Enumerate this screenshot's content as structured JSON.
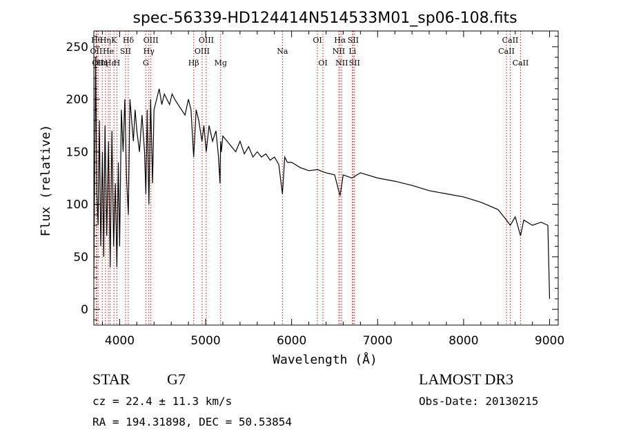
{
  "chart_data": {
    "type": "line",
    "title": "spec-56339-HD124414N514533M01_sp06-108.fits",
    "xlabel": "Wavelength (Å)",
    "ylabel": "Flux (relative)",
    "xlim": [
      3700,
      9100
    ],
    "ylim": [
      -15,
      265
    ],
    "xticks": [
      4000,
      5000,
      6000,
      7000,
      8000,
      9000
    ],
    "yticks": [
      0,
      50,
      100,
      150,
      200,
      250
    ],
    "series": [
      {
        "name": "spectrum",
        "x": [
          3700,
          3720,
          3735,
          3750,
          3765,
          3780,
          3800,
          3815,
          3830,
          3850,
          3870,
          3890,
          3910,
          3930,
          3950,
          3968,
          3985,
          4000,
          4020,
          4040,
          4060,
          4080,
          4101,
          4120,
          4140,
          4160,
          4180,
          4200,
          4230,
          4260,
          4290,
          4305,
          4320,
          4340,
          4360,
          4383,
          4400,
          4430,
          4460,
          4490,
          4520,
          4550,
          4580,
          4610,
          4640,
          4680,
          4720,
          4760,
          4800,
          4830,
          4861,
          4890,
          4920,
          4957,
          4980,
          5007,
          5040,
          5080,
          5120,
          5150,
          5167,
          5175,
          5183,
          5200,
          5250,
          5300,
          5350,
          5400,
          5450,
          5500,
          5550,
          5600,
          5650,
          5700,
          5750,
          5800,
          5850,
          5893,
          5920,
          5950,
          6000,
          6100,
          6200,
          6300,
          6400,
          6500,
          6563,
          6600,
          6700,
          6800,
          7000,
          7200,
          7400,
          7600,
          7800,
          8000,
          8200,
          8400,
          8498,
          8542,
          8600,
          8662,
          8700,
          8800,
          8900,
          8980,
          9000
        ],
        "values": [
          30,
          240,
          110,
          80,
          180,
          60,
          150,
          50,
          175,
          70,
          160,
          40,
          170,
          60,
          120,
          40,
          140,
          60,
          190,
          150,
          200,
          125,
          90,
          200,
          180,
          160,
          190,
          170,
          150,
          185,
          150,
          110,
          190,
          100,
          200,
          120,
          190,
          200,
          210,
          195,
          205,
          200,
          195,
          205,
          200,
          195,
          190,
          185,
          200,
          190,
          145,
          190,
          180,
          160,
          175,
          150,
          175,
          160,
          170,
          145,
          120,
          160,
          150,
          165,
          160,
          155,
          150,
          160,
          148,
          155,
          145,
          150,
          145,
          148,
          142,
          145,
          138,
          110,
          145,
          140,
          140,
          135,
          132,
          133,
          130,
          128,
          108,
          128,
          125,
          130,
          125,
          122,
          118,
          113,
          110,
          107,
          102,
          95,
          85,
          80,
          88,
          70,
          85,
          80,
          83,
          80,
          10
        ]
      }
    ],
    "lines": [
      {
        "wl": 3727,
        "label": "OII",
        "row": 2
      },
      {
        "wl": 3734,
        "label": "Hθ",
        "row": 1
      },
      {
        "wl": 3750,
        "label": "OII",
        "row": 3
      },
      {
        "wl": 3798,
        "label": "Hη",
        "row": 3
      },
      {
        "wl": 3835,
        "label": "Hη",
        "row": 1
      },
      {
        "wl": 3869,
        "label": "He",
        "row": 2
      },
      {
        "wl": 3889,
        "label": "Hε",
        "row": 3
      },
      {
        "wl": 3934,
        "label": "K",
        "row": 1
      },
      {
        "wl": 3968,
        "label": "H",
        "row": 3
      },
      {
        "wl": 4069,
        "label": "SII",
        "row": 2
      },
      {
        "wl": 4101,
        "label": "Hδ",
        "row": 1
      },
      {
        "wl": 4304,
        "label": "G",
        "row": 3
      },
      {
        "wl": 4340,
        "label": "Hγ",
        "row": 2
      },
      {
        "wl": 4363,
        "label": "OIII",
        "row": 1
      },
      {
        "wl": 4861,
        "label": "Hβ",
        "row": 3
      },
      {
        "wl": 4959,
        "label": "OIII",
        "row": 2
      },
      {
        "wl": 5007,
        "label": "OIII",
        "row": 1
      },
      {
        "wl": 5175,
        "label": "Mg",
        "row": 3
      },
      {
        "wl": 5893,
        "label": "Na",
        "row": 2
      },
      {
        "wl": 6300,
        "label": "OI",
        "row": 1
      },
      {
        "wl": 6364,
        "label": "OI",
        "row": 3
      },
      {
        "wl": 6548,
        "label": "NII",
        "row": 2
      },
      {
        "wl": 6563,
        "label": "Hα",
        "row": 1
      },
      {
        "wl": 6583,
        "label": "NII",
        "row": 3
      },
      {
        "wl": 6707,
        "label": "Li",
        "row": 2
      },
      {
        "wl": 6716,
        "label": "SII",
        "row": 1
      },
      {
        "wl": 6731,
        "label": "SII",
        "row": 3
      },
      {
        "wl": 8498,
        "label": "CaII",
        "row": 2
      },
      {
        "wl": 8542,
        "label": "CaII",
        "row": 1
      },
      {
        "wl": 8662,
        "label": "CaII",
        "row": 3
      }
    ]
  },
  "info": {
    "class": "STAR",
    "subclass": "G7",
    "survey": "LAMOST DR3",
    "cz": "cz = 22.4 ± 11.3 km/s",
    "obs_date": "Obs-Date: 20130215",
    "coords": "RA = 194.31898, DEC =  50.53854"
  },
  "colors": {
    "spectrum": "#000000",
    "line_marker": "#d01010"
  }
}
